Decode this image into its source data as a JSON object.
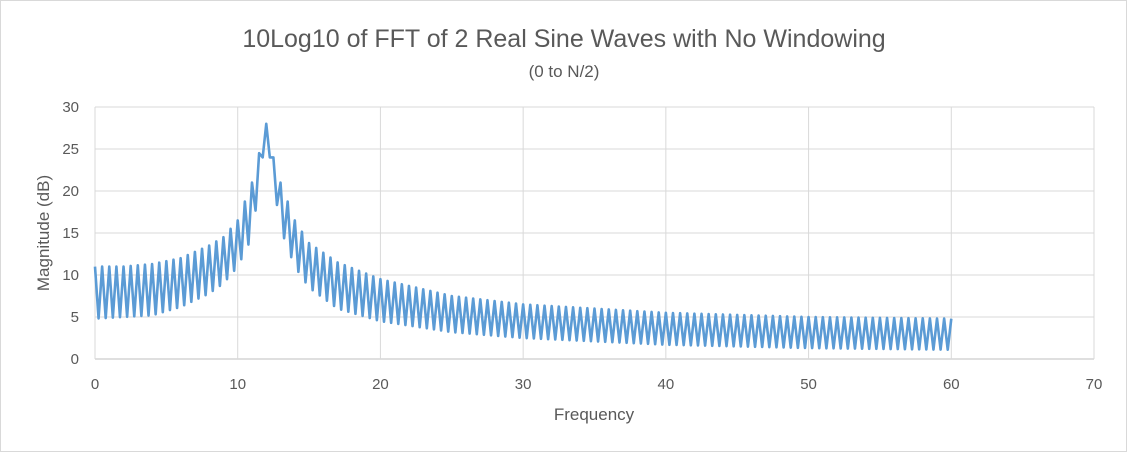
{
  "chart_data": {
    "type": "line",
    "title": "10Log10 of FFT of 2 Real Sine Waves with No Windowing",
    "subtitle": "(0 to N/2)",
    "xlabel": "Frequency",
    "ylabel": "Magnitude (dB)",
    "xlim": [
      0,
      70
    ],
    "ylim": [
      0,
      30
    ],
    "x_ticks": [
      "0",
      "10",
      "20",
      "30",
      "40",
      "50",
      "60",
      "70"
    ],
    "y_ticks": [
      "0",
      "5",
      "10",
      "15",
      "20",
      "25",
      "30"
    ],
    "grid": true,
    "legend": "none",
    "series_color": "#5b9bd5",
    "series": [
      {
        "x_start": 0,
        "x_step": 0.25,
        "points": 241,
        "peak": {
          "x": 12,
          "y": 28
        },
        "upper_envelope": [
          [
            0,
            11
          ],
          [
            2,
            11
          ],
          [
            4,
            11.3
          ],
          [
            6,
            12
          ],
          [
            8,
            13.5
          ],
          [
            9,
            14.5
          ],
          [
            10,
            16.5
          ],
          [
            11,
            21
          ],
          [
            11.5,
            24.5
          ],
          [
            12,
            28
          ],
          [
            12.5,
            24
          ],
          [
            13,
            21
          ],
          [
            14,
            16.5
          ],
          [
            15,
            13.8
          ],
          [
            17,
            11.5
          ],
          [
            20,
            9.5
          ],
          [
            25,
            7.5
          ],
          [
            30,
            6.5
          ],
          [
            40,
            5.5
          ],
          [
            50,
            5
          ],
          [
            60,
            4.8
          ]
        ],
        "lower_envelope": [
          [
            0,
            4.8
          ],
          [
            2,
            5
          ],
          [
            4,
            5.2
          ],
          [
            6,
            6.2
          ],
          [
            8,
            7.8
          ],
          [
            9,
            9
          ],
          [
            10,
            11
          ],
          [
            11,
            14.5
          ],
          [
            11.75,
            24
          ],
          [
            12,
            26.5
          ],
          [
            12.25,
            24
          ],
          [
            13,
            15.5
          ],
          [
            14,
            11
          ],
          [
            15,
            8.5
          ],
          [
            17,
            6
          ],
          [
            20,
            4.5
          ],
          [
            25,
            3.2
          ],
          [
            30,
            2.5
          ],
          [
            40,
            1.7
          ],
          [
            50,
            1.3
          ],
          [
            60,
            1.1
          ]
        ]
      }
    ]
  }
}
